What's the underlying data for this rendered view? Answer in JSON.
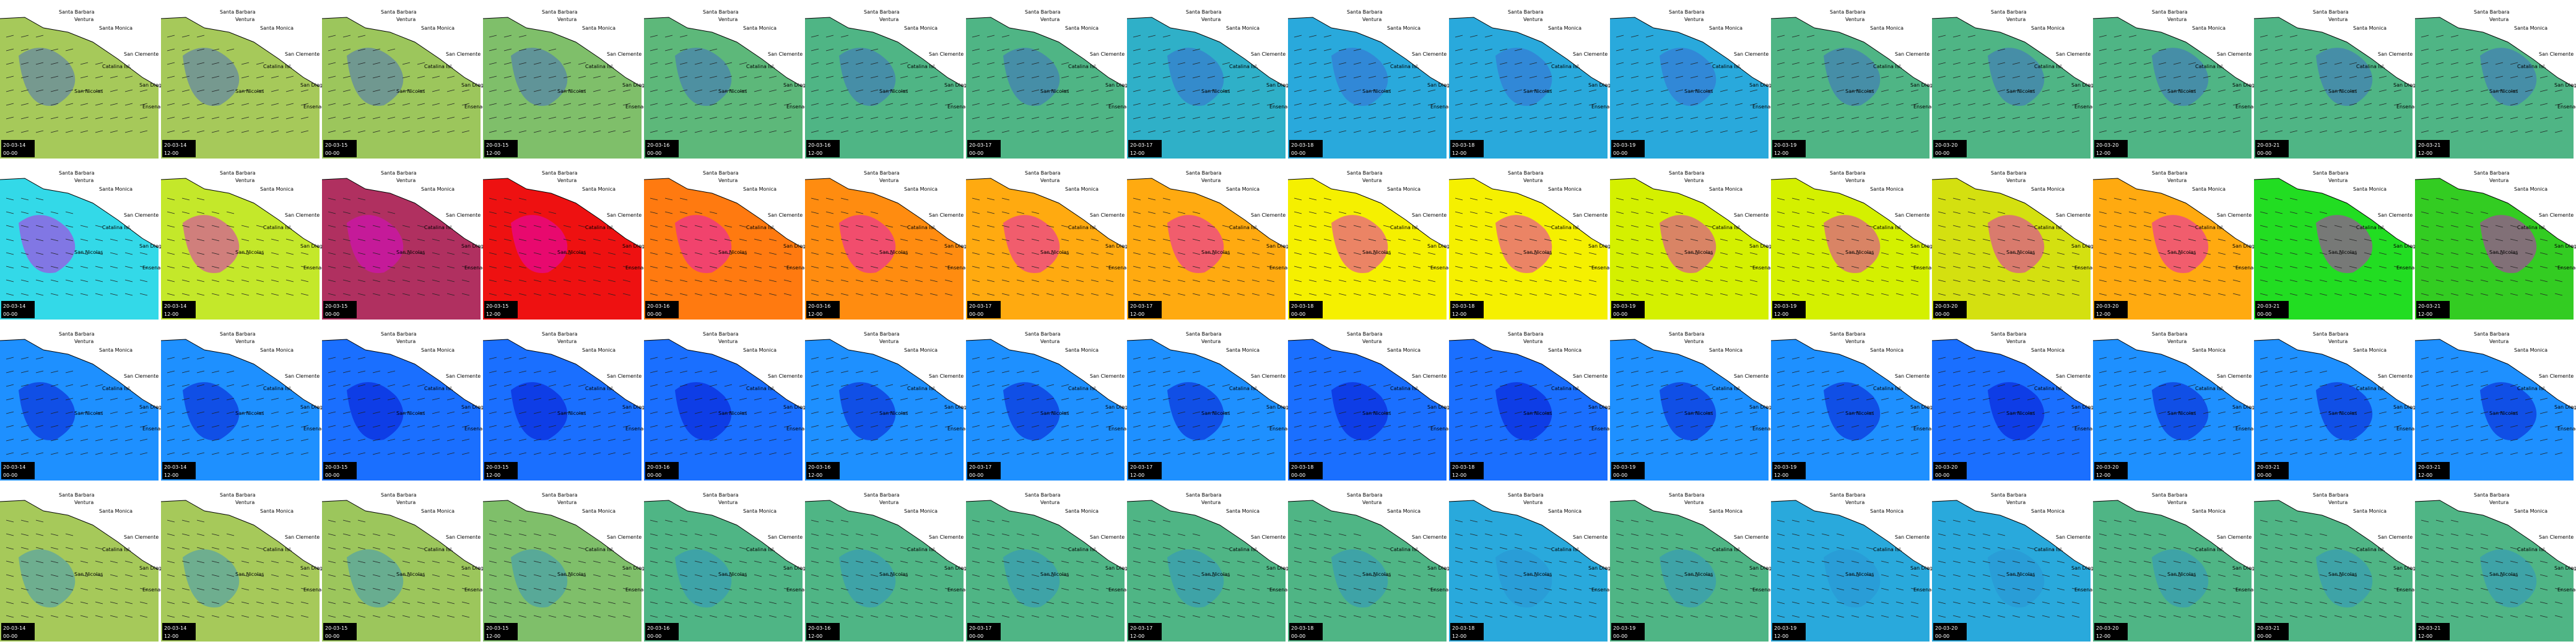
{
  "places": [
    "Santa Barbara",
    "Ventura",
    "Santa Monica",
    "San Clemente",
    "Catalina Isl.",
    "San Nicolas",
    "San Diego",
    "Ensenada"
  ],
  "timestamps": [
    {
      "date": "20-03-14",
      "time": "00-00"
    },
    {
      "date": "20-03-14",
      "time": "12-00"
    },
    {
      "date": "20-03-15",
      "time": "00-00"
    },
    {
      "date": "20-03-15",
      "time": "12-00"
    },
    {
      "date": "20-03-16",
      "time": "00-00"
    },
    {
      "date": "20-03-16",
      "time": "12-00"
    },
    {
      "date": "20-03-17",
      "time": "00-00"
    },
    {
      "date": "20-03-17",
      "time": "12-00"
    },
    {
      "date": "20-03-18",
      "time": "00-00"
    },
    {
      "date": "20-03-18",
      "time": "12-00"
    },
    {
      "date": "20-03-19",
      "time": "00-00"
    },
    {
      "date": "20-03-19",
      "time": "12-00"
    },
    {
      "date": "20-03-20",
      "time": "00-00"
    },
    {
      "date": "20-03-20",
      "time": "12-00"
    },
    {
      "date": "20-03-21",
      "time": "00-00"
    },
    {
      "date": "20-03-21",
      "time": "12-00"
    }
  ],
  "rows": [
    {
      "accent": "#3b5fd0",
      "colors": [
        "#a6c95a",
        "#a6c95a",
        "#9cc65c",
        "#7fbf6a",
        "#5db87a",
        "#4fb585",
        "#4fb585",
        "#2fb0c8",
        "#29a9dc",
        "#29a9dc",
        "#29a9dc",
        "#4fb585",
        "#4fb585",
        "#4fb585",
        "#4fb585",
        "#4fb585"
      ]
    },
    {
      "accent": "#e000e0",
      "colors": [
        "#33d9e8",
        "#c4e82a",
        "#b03060",
        "#ee1111",
        "#ff7a10",
        "#ff8c10",
        "#ffaa10",
        "#ffaa10",
        "#f5f000",
        "#f5f000",
        "#d4f000",
        "#d4f000",
        "#d4e010",
        "#ffaa10",
        "#22dd22",
        "#33cc22"
      ]
    },
    {
      "accent": "#0000c8",
      "colors": [
        "#1e90ff",
        "#1e90ff",
        "#1a6fff",
        "#1a6fff",
        "#1a6fff",
        "#1e90ff",
        "#1e90ff",
        "#1e90ff",
        "#1a6fff",
        "#1a6fff",
        "#1e90ff",
        "#1e90ff",
        "#1a6fff",
        "#1e90ff",
        "#1e90ff",
        "#1e90ff"
      ]
    },
    {
      "accent": "#2a8fd0",
      "colors": [
        "#a6c95a",
        "#a6c95a",
        "#9cc65c",
        "#7fbf6a",
        "#4fb585",
        "#4fb585",
        "#4fb585",
        "#4fb585",
        "#4fb585",
        "#29a9dc",
        "#4fb585",
        "#29a9dc",
        "#29a9dc",
        "#4fb585",
        "#4fb585",
        "#4fb585"
      ]
    }
  ]
}
